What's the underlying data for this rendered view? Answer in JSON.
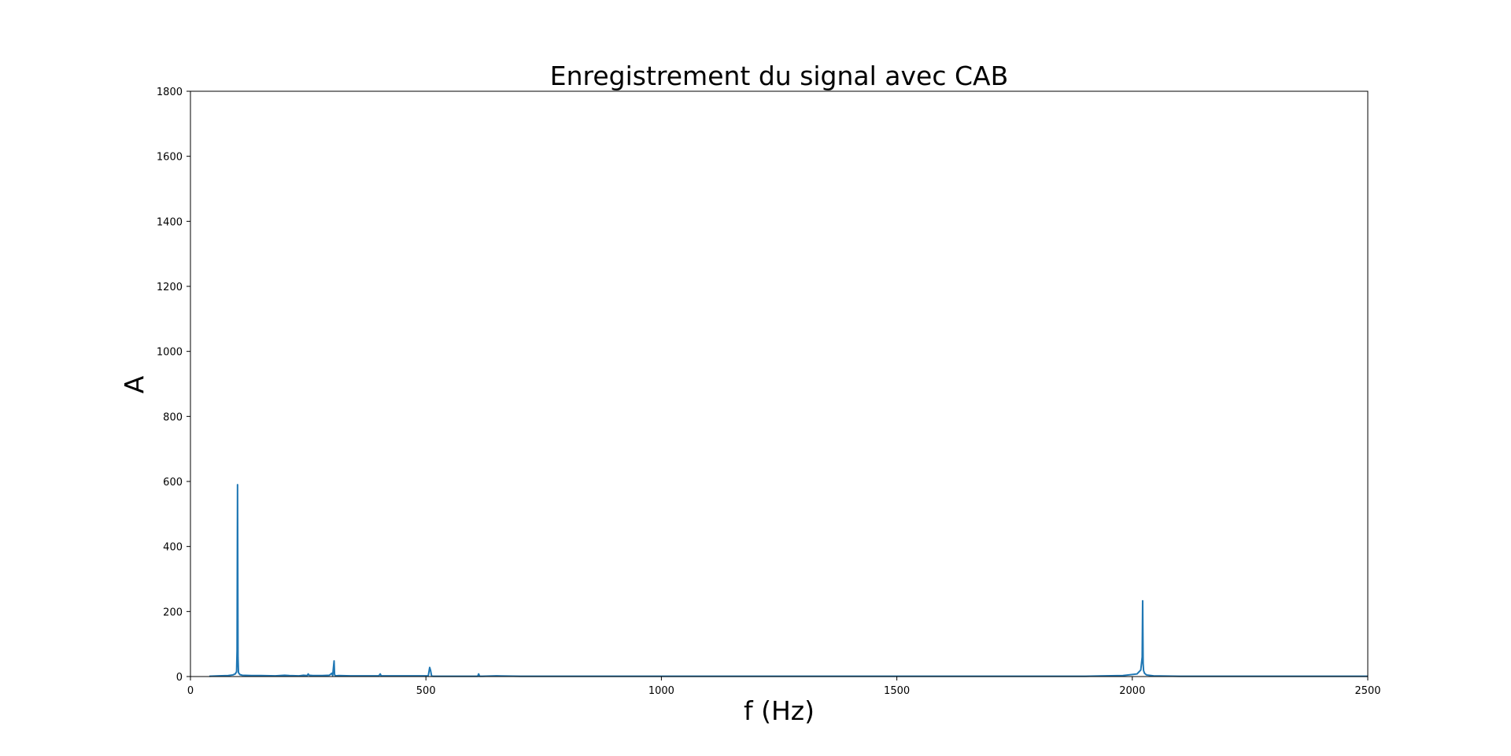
{
  "chart_data": {
    "type": "line",
    "title": "Enregistrement du signal avec CAB",
    "xlabel": "f (Hz)",
    "ylabel": "A",
    "xlim": [
      0,
      2500
    ],
    "ylim": [
      0,
      1800
    ],
    "x_ticks": [
      0,
      500,
      1000,
      1500,
      2000,
      2500
    ],
    "y_ticks": [
      0,
      200,
      400,
      600,
      800,
      1000,
      1200,
      1400,
      1600,
      1800
    ],
    "grid": false,
    "line_color": "#1f77b4",
    "series": [
      {
        "x": [
          40,
          60,
          80,
          90,
          95,
          98,
          99,
          100,
          101,
          102,
          105,
          110,
          130,
          150,
          180,
          200,
          210,
          230,
          240,
          248,
          250,
          252,
          260,
          280,
          295,
          300,
          302,
          305,
          306,
          308,
          315,
          340,
          370,
          400,
          403,
          405,
          420,
          450,
          480,
          505,
          508,
          510,
          512,
          515,
          550,
          600,
          610,
          612,
          614,
          620,
          650,
          700,
          800,
          1000,
          1500,
          1900,
          1980,
          2010,
          2018,
          2021,
          2022,
          2023,
          2024,
          2026,
          2030,
          2045,
          2100,
          2300,
          2500
        ],
        "y": [
          1,
          2,
          3,
          5,
          8,
          15,
          80,
          590,
          60,
          12,
          6,
          4,
          3,
          3,
          2,
          4,
          3,
          2,
          4,
          3,
          8,
          4,
          3,
          3,
          4,
          10,
          3,
          48,
          6,
          2,
          3,
          2,
          2,
          2,
          8,
          2,
          2,
          2,
          2,
          2,
          28,
          18,
          2,
          1,
          1,
          1,
          1,
          8,
          1,
          1,
          2,
          1,
          1,
          1,
          1,
          1,
          3,
          8,
          20,
          60,
          233,
          40,
          18,
          10,
          5,
          2,
          1,
          1,
          1
        ]
      }
    ]
  }
}
